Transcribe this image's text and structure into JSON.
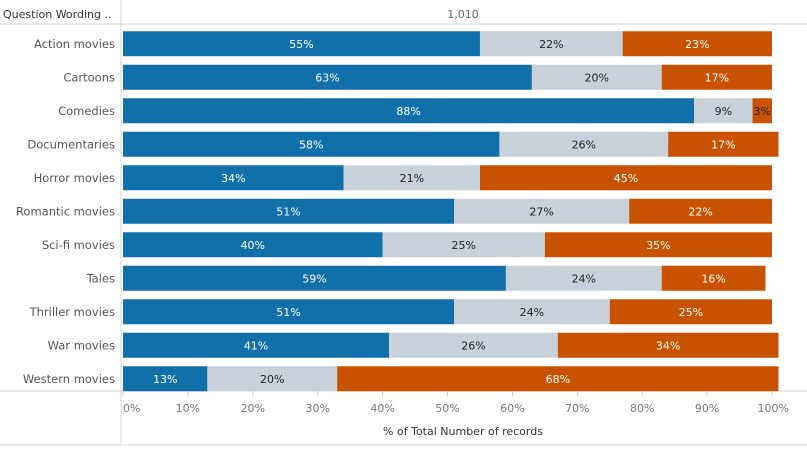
{
  "header": {
    "row_label_header": "Question Wording ..",
    "column_header": "1,010"
  },
  "colors": {
    "pos": "#1170aa",
    "neutral": "#c8d0d9",
    "neg": "#c85200",
    "pos_label": "#ffffff",
    "neutral_label": "#222222",
    "neg_label": "#ffffff"
  },
  "chart_data": {
    "type": "bar",
    "orientation": "horizontal",
    "stacked": true,
    "normalized": true,
    "title": "",
    "xlabel": "% of Total Number of records",
    "ylabel": "",
    "xlim": [
      0,
      100
    ],
    "x_ticks": [
      "0%",
      "10%",
      "20%",
      "30%",
      "40%",
      "50%",
      "60%",
      "70%",
      "80%",
      "90%",
      "100%"
    ],
    "categories": [
      "Action movies",
      "Cartoons",
      "Comedies",
      "Documentaries",
      "Horror movies",
      "Romantic movies",
      "Sci-fi movies",
      "Tales",
      "Thriller movies",
      "War movies",
      "Western movies"
    ],
    "series": [
      {
        "values": [
          55,
          63,
          88,
          58,
          34,
          51,
          40,
          59,
          51,
          41,
          13
        ],
        "labels": [
          "55%",
          "63%",
          "88%",
          "58%",
          "34%",
          "51%",
          "40%",
          "59%",
          "51%",
          "41%",
          "13%"
        ]
      },
      {
        "values": [
          22,
          20,
          9,
          26,
          21,
          27,
          25,
          24,
          24,
          26,
          20
        ],
        "labels": [
          "22%",
          "20%",
          "9%",
          "26%",
          "21%",
          "27%",
          "25%",
          "24%",
          "24%",
          "26%",
          "20%"
        ]
      },
      {
        "values": [
          23,
          17,
          3,
          17,
          45,
          22,
          35,
          16,
          25,
          34,
          68
        ],
        "labels": [
          "23%",
          "17%",
          "3%",
          "17%",
          "45%",
          "22%",
          "35%",
          "16%",
          "25%",
          "34%",
          "68%"
        ]
      }
    ]
  }
}
